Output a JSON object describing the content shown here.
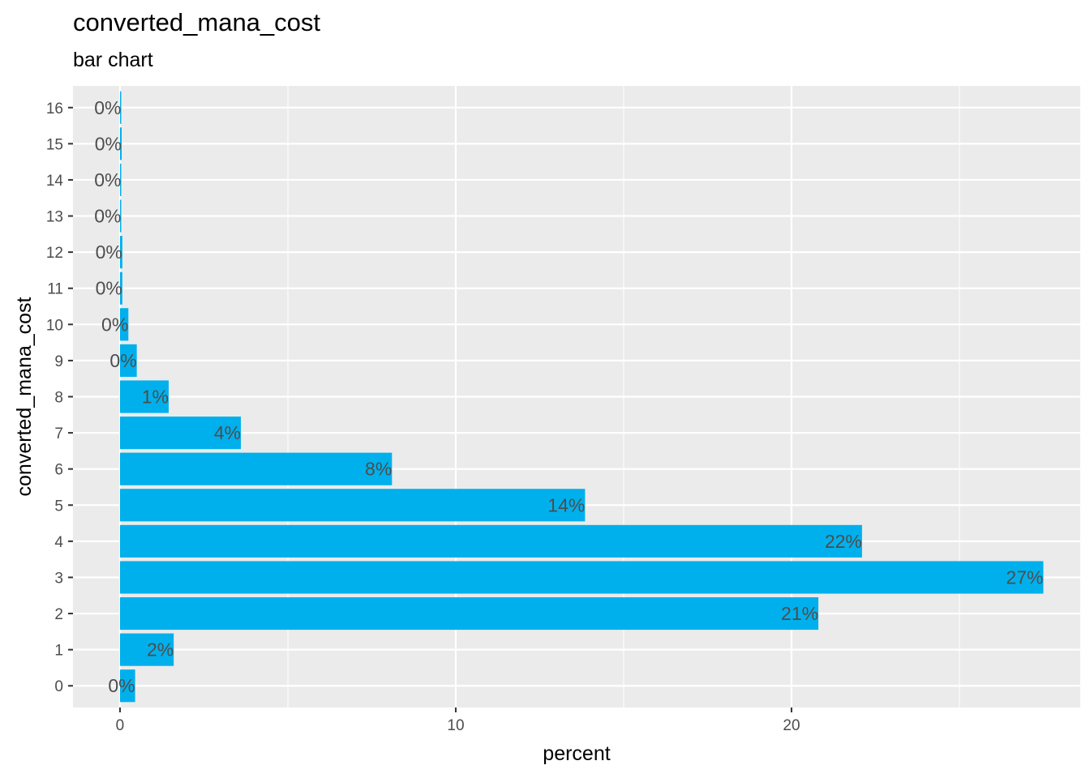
{
  "title": "converted_mana_cost",
  "subtitle": "bar chart",
  "colors": {
    "bar": "#00B0EC",
    "panel": "#EBEBEB",
    "grid": "#FFFFFF",
    "text": "#4D4D4D"
  },
  "chart_data": {
    "type": "bar",
    "orientation": "horizontal",
    "title": "converted_mana_cost",
    "subtitle": "bar chart",
    "xlabel": "percent",
    "ylabel": "converted_mana_cost",
    "xlim": [
      -1.4,
      28.6
    ],
    "x_ticks": [
      0,
      10,
      20
    ],
    "x_tick_labels": [
      "0",
      "10",
      "20"
    ],
    "grid": true,
    "categories": [
      "0",
      "1",
      "2",
      "3",
      "4",
      "5",
      "6",
      "7",
      "8",
      "9",
      "10",
      "11",
      "12",
      "13",
      "14",
      "15",
      "16"
    ],
    "values": [
      0.45,
      1.6,
      20.8,
      27.5,
      22.1,
      13.85,
      8.1,
      3.6,
      1.45,
      0.5,
      0.25,
      0.07,
      0.07,
      0.03,
      0.03,
      0.05,
      0.03
    ],
    "data_labels": [
      "0%",
      "2%",
      "21%",
      "27%",
      "22%",
      "14%",
      "8%",
      "4%",
      "1%",
      "0%",
      "0%",
      "0%",
      "0%",
      "0%",
      "0%",
      "0%",
      "0%"
    ]
  }
}
